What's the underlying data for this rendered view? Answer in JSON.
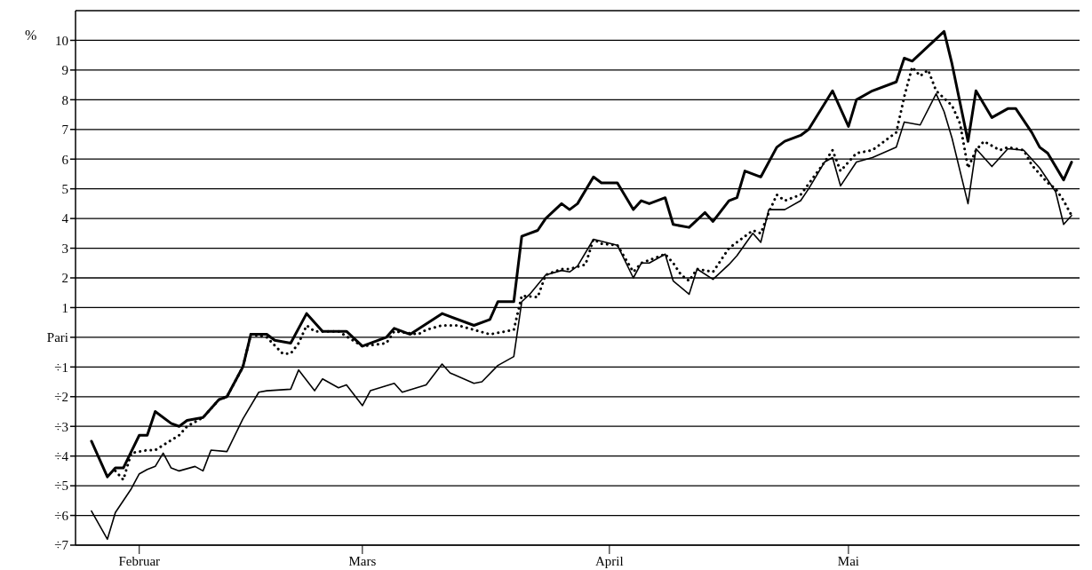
{
  "chart_data": {
    "type": "line",
    "ylabel": "%",
    "grid": "y",
    "marker": "none",
    "xlim": [
      "--01-24",
      "--05-30"
    ],
    "xticks": [
      {
        "value": "--02-01",
        "label": "Februar"
      },
      {
        "value": "--03-01",
        "label": "Mars"
      },
      {
        "value": "--04-01",
        "label": "April"
      },
      {
        "value": "--05-01",
        "label": "Mai"
      }
    ],
    "ylim": [
      -7,
      11
    ],
    "yticks": [
      {
        "value": -7,
        "label": "÷7"
      },
      {
        "value": -6,
        "label": "÷6"
      },
      {
        "value": -5,
        "label": "÷5"
      },
      {
        "value": -4,
        "label": "÷4"
      },
      {
        "value": -3,
        "label": "÷3"
      },
      {
        "value": -2,
        "label": "÷2"
      },
      {
        "value": -1,
        "label": "÷1"
      },
      {
        "value": 0,
        "label": "Pari"
      },
      1,
      2,
      3,
      4,
      5,
      6,
      7,
      8,
      9,
      10
    ],
    "series": [
      {
        "color": "#000000",
        "line_style": "solid",
        "x": [
          "--01-26",
          "--01-28",
          "--01-29",
          "--01-30",
          "--02-01",
          "--02-02",
          "--02-03",
          "--02-05",
          "--02-06",
          "--02-07",
          "--02-09",
          "--02-11",
          "--02-12",
          "--02-14",
          "--02-15",
          "--02-17",
          "--02-18",
          "--02-20",
          "--02-22",
          "--02-24",
          "--02-26",
          "--02-27",
          "--03-01",
          "--03-04",
          "--03-05",
          "--03-07",
          "--03-11",
          "--03-15",
          "--03-17",
          "--03-18",
          "--03-20",
          "--03-21",
          "--03-23",
          "--03-24",
          "--03-26",
          "--03-27",
          "--03-28",
          "--03-30",
          "--03-31",
          "--04-02",
          "--04-04",
          "--04-05",
          "--04-06",
          "--04-08",
          "--04-09",
          "--04-11",
          "--04-13",
          "--04-14",
          "--04-16",
          "--04-17",
          "--04-18",
          "--04-20",
          "--04-22",
          "--04-23",
          "--04-25",
          "--04-26",
          "--04-29",
          "--05-01",
          "--05-02",
          "--05-04",
          "--05-07",
          "--05-08",
          "--05-09",
          "--05-13",
          "--05-14",
          "--05-16",
          "--05-17",
          "--05-19",
          "--05-21",
          "--05-22",
          "--05-24",
          "--05-25",
          "--05-26",
          "--05-28",
          "--05-29"
        ],
        "values": [
          -3.5,
          -4.7,
          -4.4,
          -4.4,
          -3.3,
          -3.3,
          -2.5,
          -2.9,
          -3.0,
          -2.8,
          -2.7,
          -2.1,
          -2.0,
          -1.0,
          0.1,
          0.1,
          -0.1,
          -0.2,
          0.8,
          0.2,
          0.2,
          0.2,
          -0.3,
          0.0,
          0.3,
          0.1,
          0.8,
          0.4,
          0.6,
          1.2,
          1.2,
          3.4,
          3.6,
          4.0,
          4.5,
          4.3,
          4.5,
          5.4,
          5.2,
          5.2,
          4.3,
          4.6,
          4.5,
          4.7,
          3.8,
          3.7,
          4.2,
          3.9,
          4.6,
          4.7,
          5.6,
          5.4,
          6.4,
          6.6,
          6.8,
          7.0,
          8.3,
          7.1,
          8.0,
          8.3,
          8.6,
          9.4,
          9.3,
          10.3,
          9.2,
          6.6,
          8.3,
          7.4,
          7.7,
          7.7,
          6.9,
          6.4,
          6.2,
          5.3,
          5.9
        ]
      },
      {
        "color": "#000000",
        "line_style": "dotted",
        "x": [
          "--01-29",
          "--01-30",
          "--01-31",
          "--02-02",
          "--02-03",
          "--02-06",
          "--02-07",
          "--02-09",
          "--02-11",
          "--02-12",
          "--02-14",
          "--02-15",
          "--02-17",
          "--02-19",
          "--02-20",
          "--02-21",
          "--02-22",
          "--02-23",
          "--02-26",
          "--03-01",
          "--03-04",
          "--03-05",
          "--03-08",
          "--03-09",
          "--03-11",
          "--03-13",
          "--03-15",
          "--03-17",
          "--03-20",
          "--03-21",
          "--03-23",
          "--03-24",
          "--03-26",
          "--03-27",
          "--03-29",
          "--03-30",
          "--03-31",
          "--04-02",
          "--04-04",
          "--04-05",
          "--04-08",
          "--04-09",
          "--04-10",
          "--04-11",
          "--04-12",
          "--04-14",
          "--04-16",
          "--04-17",
          "--04-18",
          "--04-19",
          "--04-20",
          "--04-21",
          "--04-22",
          "--04-23",
          "--04-25",
          "--04-28",
          "--04-29",
          "--04-30",
          "--05-02",
          "--05-04",
          "--05-05",
          "--05-07",
          "--05-08",
          "--05-09",
          "--05-10",
          "--05-11",
          "--05-12",
          "--05-14",
          "--05-15",
          "--05-16",
          "--05-17",
          "--05-18",
          "--05-20",
          "--05-21",
          "--05-23",
          "--05-24",
          "--05-26",
          "--05-27",
          "--05-28",
          "--05-29"
        ],
        "values": [
          -4.5,
          -4.8,
          -3.9,
          -3.8,
          -3.8,
          -3.3,
          -3.0,
          -2.7,
          -2.1,
          -2.0,
          -1.0,
          0.1,
          0.0,
          -0.55,
          -0.55,
          -0.2,
          0.4,
          0.2,
          0.2,
          -0.3,
          -0.2,
          0.2,
          0.1,
          0.25,
          0.4,
          0.4,
          0.25,
          0.1,
          0.25,
          1.4,
          1.35,
          2.1,
          2.3,
          2.3,
          2.45,
          3.3,
          3.15,
          3.1,
          2.2,
          2.5,
          2.8,
          2.5,
          2.1,
          1.9,
          2.3,
          2.2,
          3.0,
          3.2,
          3.4,
          3.6,
          3.5,
          4.2,
          4.8,
          4.6,
          4.8,
          5.9,
          6.3,
          5.6,
          6.2,
          6.3,
          6.5,
          6.9,
          8.1,
          9.1,
          8.8,
          9.0,
          8.3,
          7.8,
          7.2,
          5.7,
          6.3,
          6.6,
          6.3,
          6.4,
          6.3,
          5.8,
          5.2,
          5.0,
          4.6,
          4.1
        ]
      },
      {
        "color": "#000000",
        "line_style": "solid",
        "x": [
          "--01-26",
          "--01-28",
          "--01-29",
          "--01-31",
          "--02-01",
          "--02-02",
          "--02-03",
          "--02-04",
          "--02-05",
          "--02-06",
          "--02-08",
          "--02-09",
          "--02-10",
          "--02-12",
          "--02-14",
          "--02-16",
          "--02-17",
          "--02-20",
          "--02-21",
          "--02-23",
          "--02-24",
          "--02-26",
          "--02-27",
          "--03-01",
          "--03-02",
          "--03-05",
          "--03-06",
          "--03-09",
          "--03-11",
          "--03-12",
          "--03-15",
          "--03-16",
          "--03-18",
          "--03-20",
          "--03-21",
          "--03-22",
          "--03-24",
          "--03-26",
          "--03-27",
          "--03-28",
          "--03-30",
          "--04-02",
          "--04-04",
          "--04-05",
          "--04-06",
          "--04-08",
          "--04-09",
          "--04-11",
          "--04-12",
          "--04-14",
          "--04-16",
          "--04-17",
          "--04-19",
          "--04-20",
          "--04-21",
          "--04-23",
          "--04-25",
          "--04-26",
          "--04-28",
          "--04-29",
          "--04-30",
          "--05-02",
          "--05-04",
          "--05-07",
          "--05-08",
          "--05-10",
          "--05-12",
          "--05-13",
          "--05-14",
          "--05-16",
          "--05-17",
          "--05-19",
          "--05-21",
          "--05-23",
          "--05-25",
          "--05-27",
          "--05-28",
          "--05-29"
        ],
        "values": [
          -5.85,
          -6.8,
          -5.9,
          -5.1,
          -4.6,
          -4.45,
          -4.35,
          -3.9,
          -4.4,
          -4.5,
          -4.35,
          -4.5,
          -3.8,
          -3.85,
          -2.75,
          -1.85,
          -1.8,
          -1.75,
          -1.1,
          -1.8,
          -1.4,
          -1.7,
          -1.6,
          -2.3,
          -1.8,
          -1.55,
          -1.85,
          -1.6,
          -0.9,
          -1.2,
          -1.55,
          -1.5,
          -0.95,
          -0.65,
          1.2,
          1.45,
          2.1,
          2.25,
          2.2,
          2.4,
          3.3,
          3.1,
          2.0,
          2.5,
          2.5,
          2.8,
          1.9,
          1.45,
          2.3,
          1.95,
          2.45,
          2.75,
          3.5,
          3.2,
          4.3,
          4.3,
          4.6,
          5.0,
          5.9,
          6.05,
          5.1,
          5.9,
          6.05,
          6.4,
          7.25,
          7.15,
          8.2,
          7.6,
          6.7,
          4.5,
          6.35,
          5.75,
          6.35,
          6.3,
          5.7,
          4.9,
          3.8,
          4.1
        ]
      }
    ]
  }
}
